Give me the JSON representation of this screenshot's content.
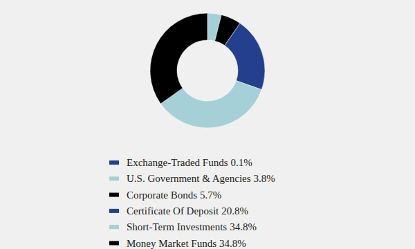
{
  "chart_data": {
    "type": "donut",
    "categories": [
      "Exchange-Traded Funds",
      "U.S. Government & Agencies",
      "Corporate Bonds",
      "Certificate Of Deposit",
      "Short-Term Investments",
      "Money Market Funds"
    ],
    "values": [
      0.1,
      3.8,
      5.7,
      20.8,
      34.8,
      34.8
    ],
    "value_labels": [
      "0.1%",
      "3.8%",
      "5.7%",
      "20.8%",
      "34.8%",
      "34.8%"
    ],
    "colors": [
      "#233f8e",
      "#a6d0d7",
      "#000000",
      "#233f8e",
      "#a6d0d7",
      "#000000"
    ],
    "legend": "bottom"
  }
}
